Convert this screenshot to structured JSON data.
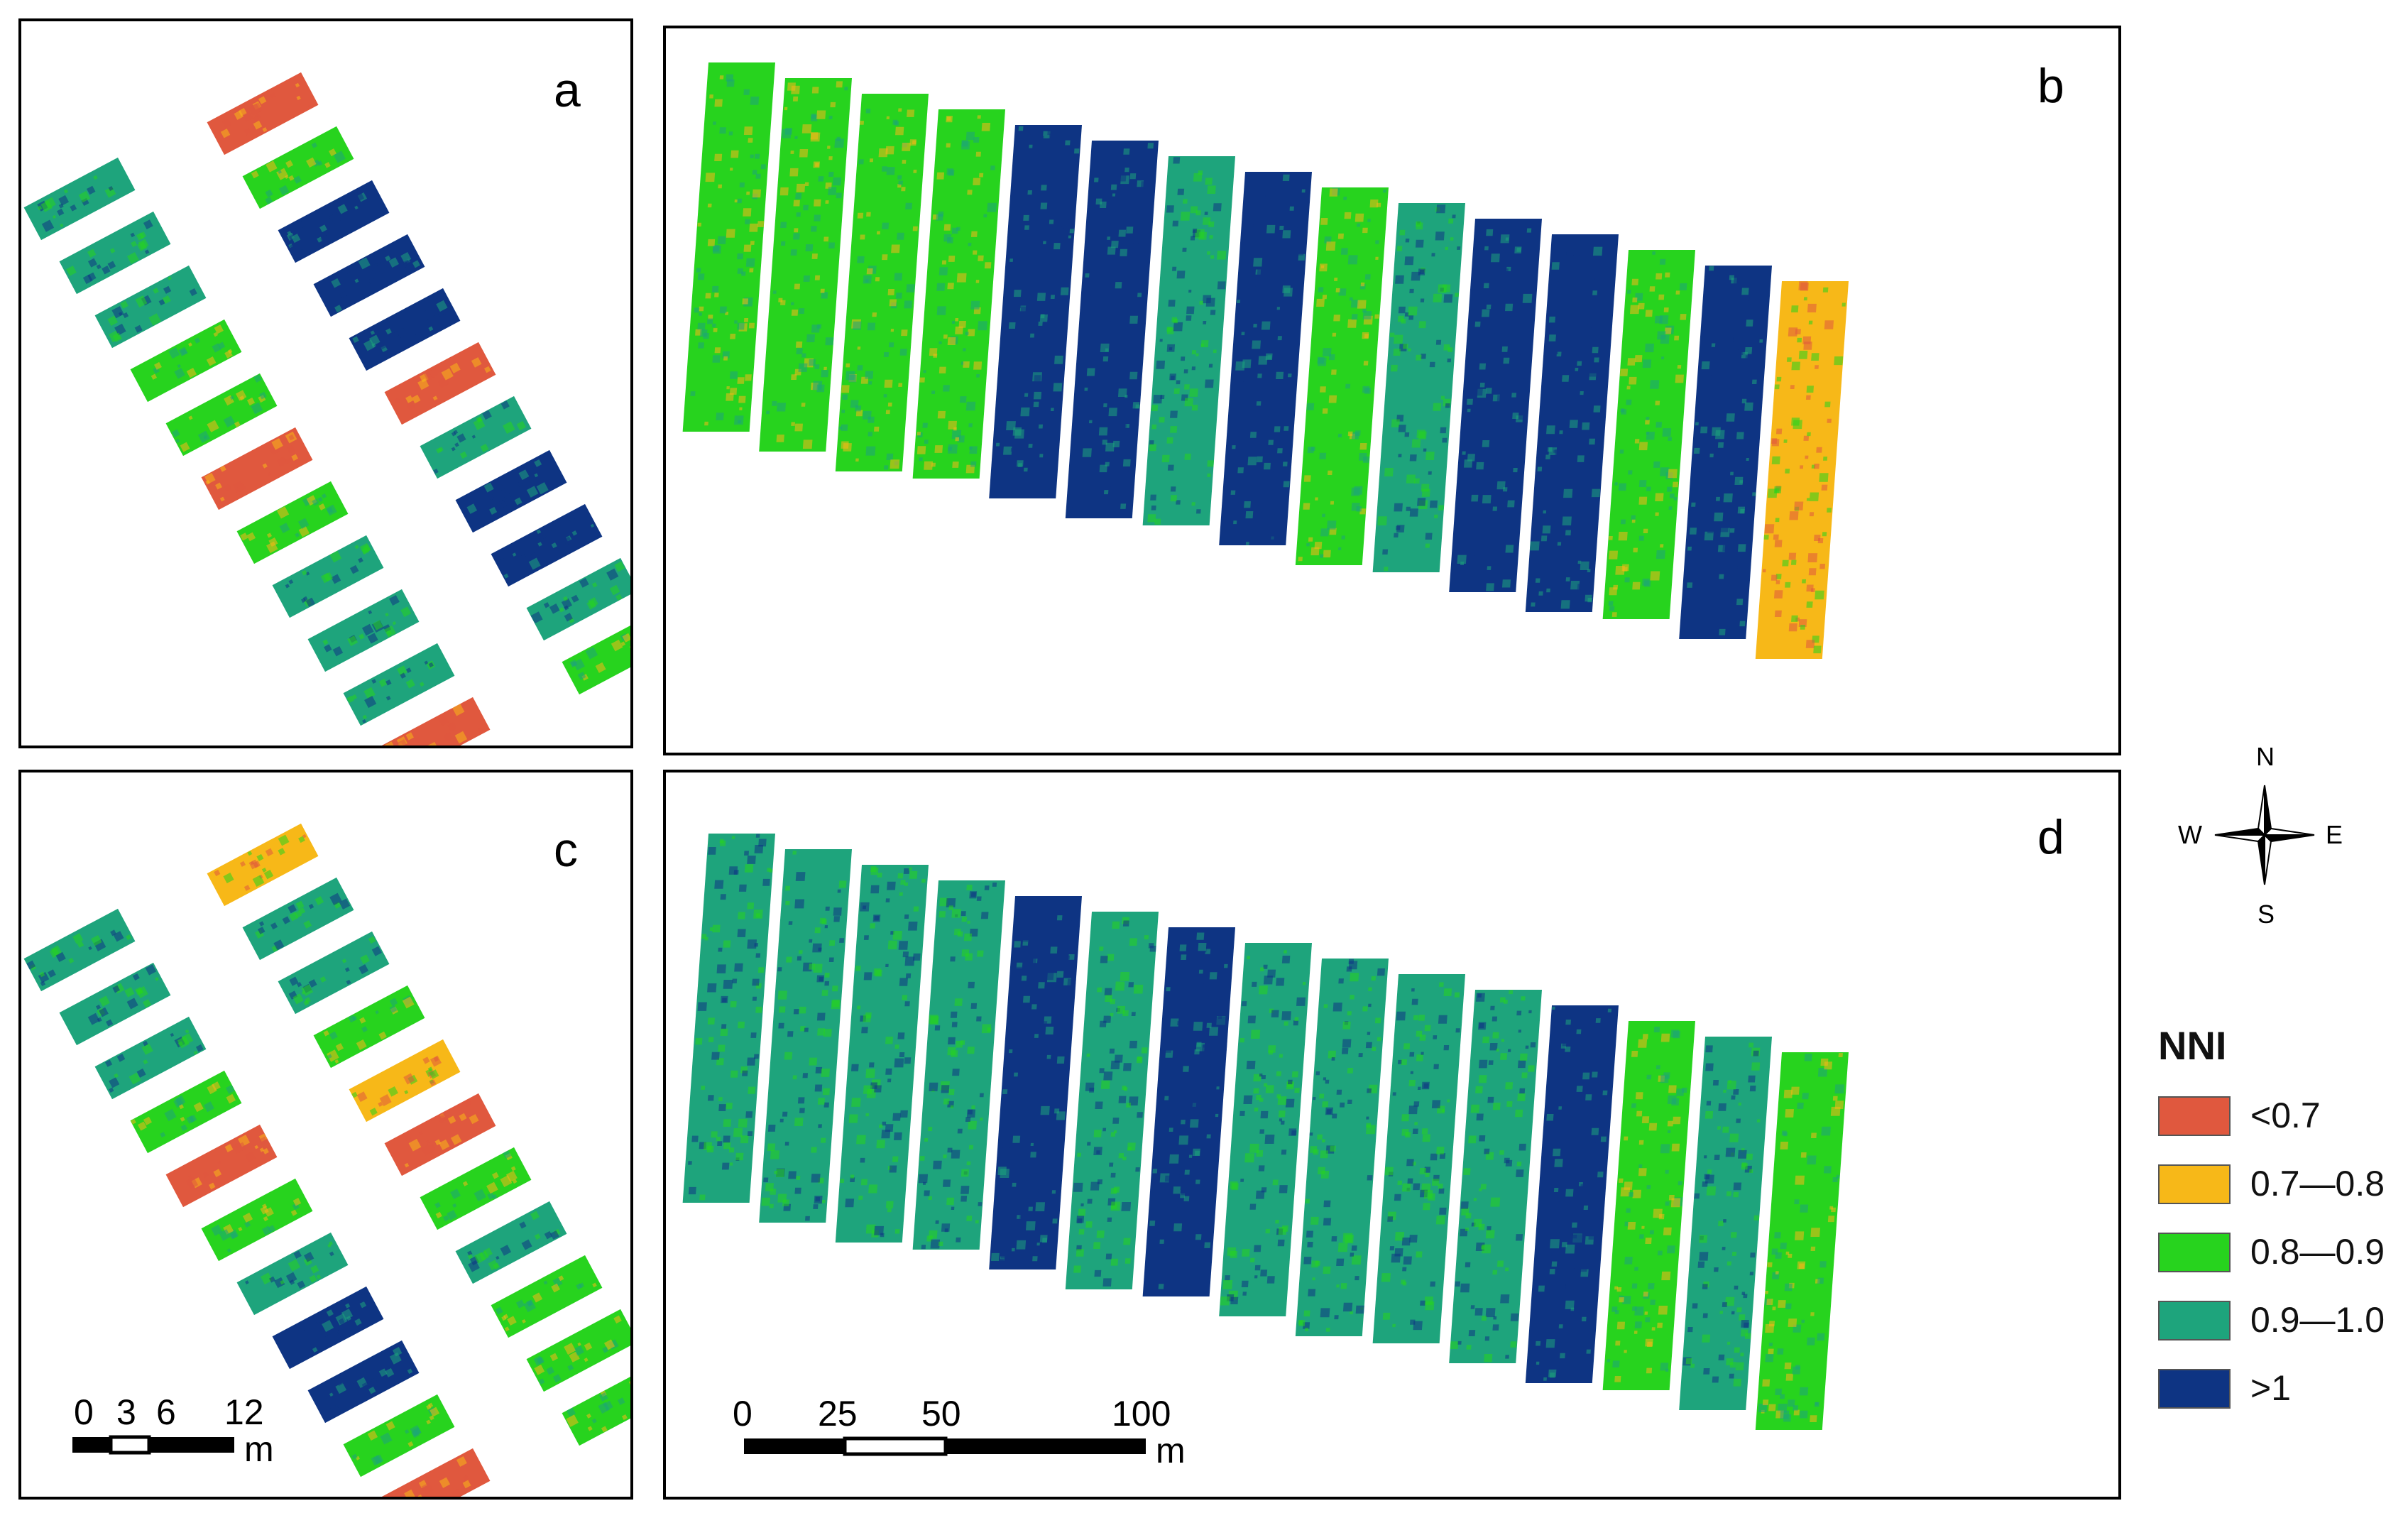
{
  "panels": {
    "a": {
      "label": "a",
      "plots": [
        "<0.7",
        "0.9-1.0",
        "0.8-0.9",
        "0.9-1.0",
        ">1",
        "0.9-1.0",
        ">1",
        "0.8-0.9",
        ">1",
        "0.8-0.9",
        "<0.7",
        "<0.7",
        "0.9-1.0",
        "0.8-0.9",
        ">1",
        "0.9-1.0",
        ">1",
        "0.9-1.0",
        "0.9-1.0",
        "0.9-1.0",
        "0.8-0.9",
        "<0.7"
      ]
    },
    "b": {
      "label": "b",
      "strips": [
        "0.8-0.9",
        "0.8-0.9",
        "0.8-0.9",
        "0.8-0.9",
        ">1",
        ">1",
        "0.9-1.0",
        ">1",
        "0.8-0.9",
        "0.9-1.0",
        ">1",
        ">1",
        "0.8-0.9",
        ">1",
        "0.7-0.8"
      ]
    },
    "c": {
      "label": "c",
      "plots": [
        "0.7-0.8",
        "0.9-1.0",
        "0.9-1.0",
        "0.9-1.0",
        "0.9-1.0",
        "0.9-1.0",
        "0.8-0.9",
        "0.8-0.9",
        "0.7-0.8",
        "<0.7",
        "<0.7",
        "0.8-0.9",
        "0.8-0.9",
        "0.9-1.0",
        "0.9-1.0",
        ">1",
        "0.8-0.9",
        ">1",
        "0.8-0.9",
        "0.8-0.9",
        "0.8-0.9",
        "<0.7"
      ]
    },
    "d": {
      "label": "d",
      "strips": [
        "0.9-1.0",
        "0.9-1.0",
        "0.9-1.0",
        "0.9-1.0",
        ">1",
        "0.9-1.0",
        ">1",
        "0.9-1.0",
        "0.9-1.0",
        "0.9-1.0",
        "0.9-1.0",
        ">1",
        "0.8-0.9",
        "0.9-1.0",
        "0.8-0.9"
      ]
    }
  },
  "scalebar_small": {
    "ticks": [
      "0",
      "3",
      "6",
      "12"
    ],
    "unit": "m"
  },
  "scalebar_large": {
    "ticks": [
      "0",
      "25",
      "50",
      "100"
    ],
    "unit": "m"
  },
  "compass": {
    "n": "N",
    "s": "S",
    "e": "E",
    "w": "W"
  },
  "legend": {
    "title": "NNI",
    "items": [
      {
        "label": "<0.7",
        "color": "#E0583E"
      },
      {
        "label": "0.7—0.8",
        "color": "#F7B818"
      },
      {
        "label": "0.8—0.9",
        "color": "#27D31E"
      },
      {
        "label": "0.9—1.0",
        "color": "#1EA47C"
      },
      {
        "label": ">1",
        "color": "#0E3483"
      }
    ]
  }
}
